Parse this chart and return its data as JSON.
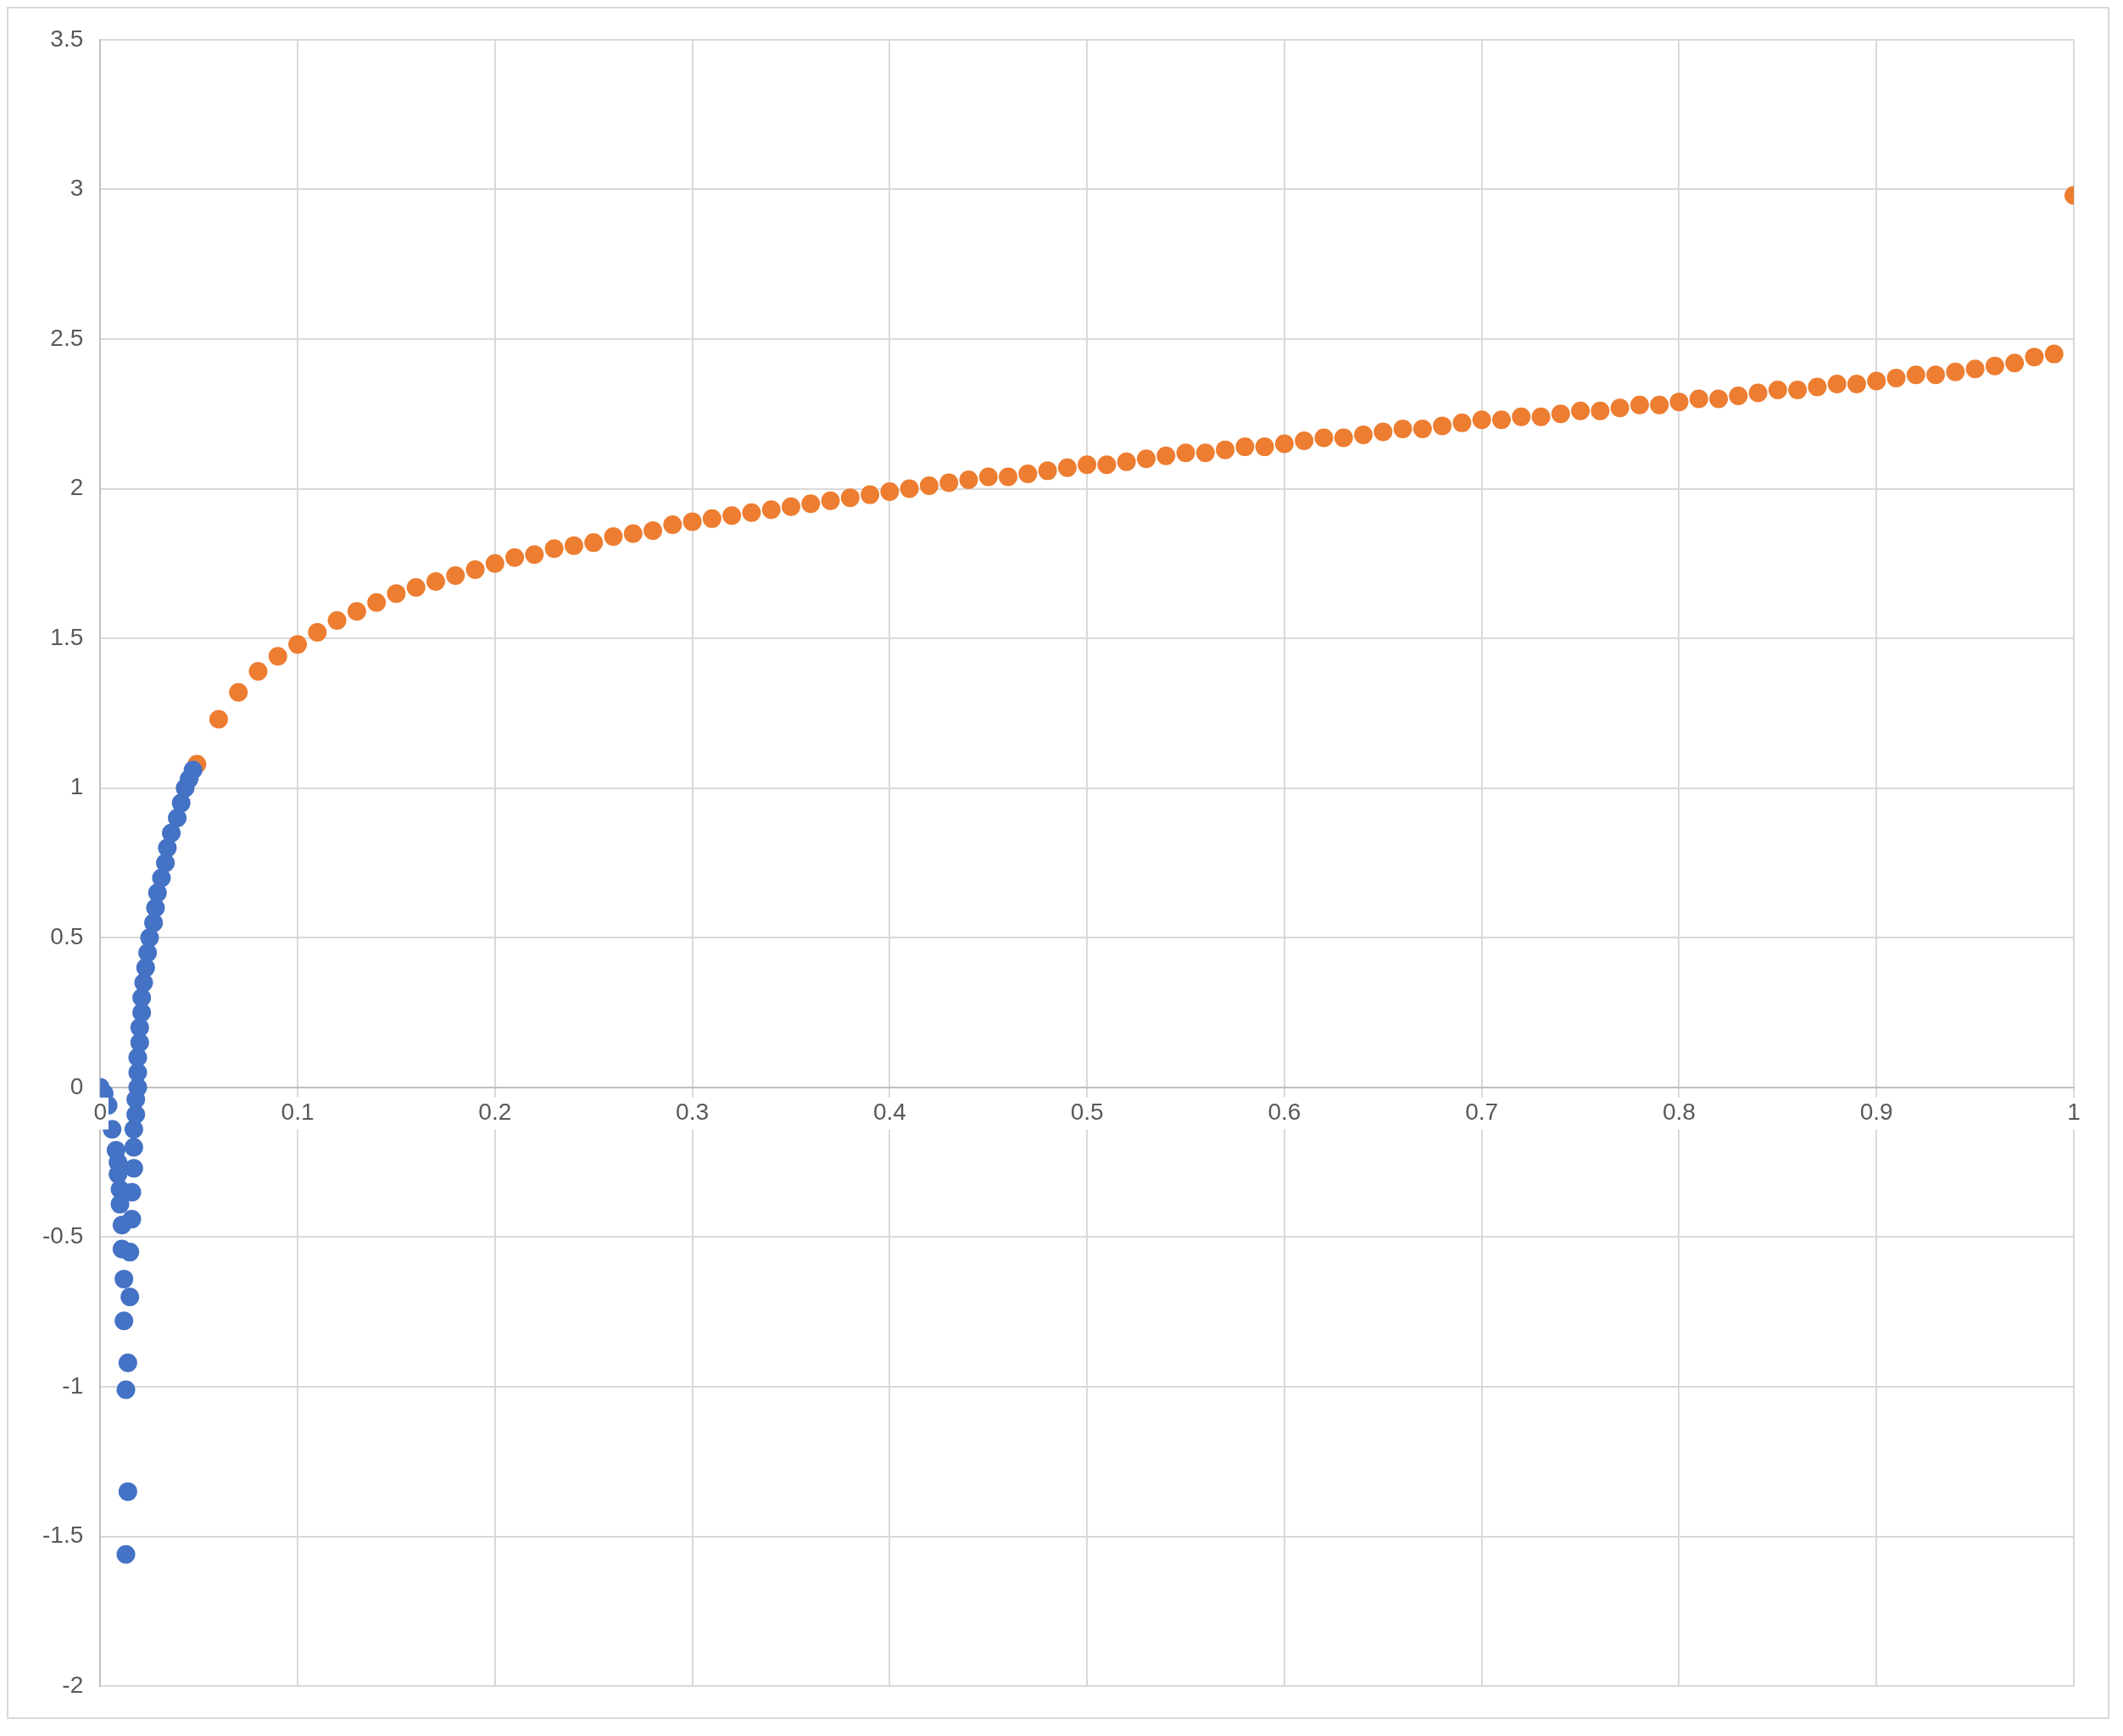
{
  "chart_data": {
    "type": "scatter",
    "xlim": [
      0,
      1
    ],
    "xticks": [
      0,
      0.1,
      0.2,
      0.3,
      0.4,
      0.5,
      0.6,
      0.7,
      0.8,
      0.9,
      1
    ],
    "ylim": [
      -2,
      3.5
    ],
    "yticks": [
      -2,
      -1.5,
      -1,
      -0.5,
      0,
      0.5,
      1,
      1.5,
      2,
      2.5,
      3,
      3.5
    ],
    "grid": true,
    "legend": false,
    "marker": "circle",
    "series": [
      {
        "color": "#4472c4",
        "x": [
          0,
          0.002,
          0.004,
          0.006,
          0.008,
          0.009,
          0.009,
          0.01,
          0.01,
          0.011,
          0.011,
          0.012,
          0.012,
          0.013,
          0.013,
          0.014,
          0.014,
          0.015,
          0.015,
          0.016,
          0.016,
          0.017,
          0.017,
          0.017,
          0.018,
          0.018,
          0.019,
          0.019,
          0.019,
          0.02,
          0.02,
          0.021,
          0.021,
          0.022,
          0.023,
          0.024,
          0.025,
          0.027,
          0.028,
          0.029,
          0.031,
          0.033,
          0.034,
          0.036,
          0.039,
          0.041,
          0.043,
          0.045,
          0.047
        ],
        "values": [
          0,
          -0.02,
          -0.06,
          -0.14,
          -0.21,
          -0.25,
          -0.29,
          -0.34,
          -0.39,
          -0.46,
          -0.54,
          -0.64,
          -0.78,
          -1.01,
          -1.56,
          -1.35,
          -0.92,
          -0.7,
          -0.55,
          -0.44,
          -0.35,
          -0.27,
          -0.2,
          -0.14,
          -0.09,
          -0.04,
          0,
          0.05,
          0.1,
          0.15,
          0.2,
          0.25,
          0.3,
          0.35,
          0.4,
          0.45,
          0.5,
          0.55,
          0.6,
          0.65,
          0.7,
          0.75,
          0.8,
          0.85,
          0.9,
          0.95,
          1,
          1.03,
          1.06
        ]
      },
      {
        "color": "#ed7d31",
        "x": [
          0.049,
          0.06,
          0.07,
          0.08,
          0.09,
          0.1,
          0.11,
          0.12,
          0.13,
          0.14,
          0.15,
          0.16,
          0.17,
          0.18,
          0.19,
          0.2,
          0.21,
          0.22,
          0.23,
          0.24,
          0.25,
          0.26,
          0.27,
          0.28,
          0.29,
          0.3,
          0.31,
          0.32,
          0.33,
          0.34,
          0.35,
          0.36,
          0.37,
          0.38,
          0.39,
          0.4,
          0.41,
          0.42,
          0.43,
          0.44,
          0.45,
          0.46,
          0.47,
          0.48,
          0.49,
          0.5,
          0.51,
          0.52,
          0.53,
          0.54,
          0.55,
          0.56,
          0.57,
          0.58,
          0.59,
          0.6,
          0.61,
          0.62,
          0.63,
          0.64,
          0.65,
          0.66,
          0.67,
          0.68,
          0.69,
          0.7,
          0.71,
          0.72,
          0.73,
          0.74,
          0.75,
          0.76,
          0.77,
          0.78,
          0.79,
          0.8,
          0.81,
          0.82,
          0.83,
          0.84,
          0.85,
          0.86,
          0.87,
          0.88,
          0.89,
          0.9,
          0.91,
          0.92,
          0.93,
          0.94,
          0.95,
          0.96,
          0.97,
          0.98,
          0.99,
          1
        ],
        "values": [
          1.08,
          1.23,
          1.32,
          1.39,
          1.44,
          1.48,
          1.52,
          1.56,
          1.59,
          1.62,
          1.65,
          1.67,
          1.69,
          1.71,
          1.73,
          1.75,
          1.77,
          1.78,
          1.8,
          1.81,
          1.82,
          1.84,
          1.85,
          1.86,
          1.88,
          1.89,
          1.9,
          1.91,
          1.92,
          1.93,
          1.94,
          1.95,
          1.96,
          1.97,
          1.98,
          1.99,
          2,
          2.01,
          2.02,
          2.03,
          2.04,
          2.04,
          2.05,
          2.06,
          2.07,
          2.08,
          2.08,
          2.09,
          2.1,
          2.11,
          2.12,
          2.12,
          2.13,
          2.14,
          2.14,
          2.15,
          2.16,
          2.17,
          2.17,
          2.18,
          2.19,
          2.2,
          2.2,
          2.21,
          2.22,
          2.23,
          2.23,
          2.24,
          2.24,
          2.25,
          2.26,
          2.26,
          2.27,
          2.28,
          2.28,
          2.29,
          2.3,
          2.3,
          2.31,
          2.32,
          2.33,
          2.33,
          2.34,
          2.35,
          2.35,
          2.36,
          2.37,
          2.38,
          2.38,
          2.39,
          2.4,
          2.41,
          2.42,
          2.44,
          2.45,
          2.98
        ]
      }
    ]
  }
}
